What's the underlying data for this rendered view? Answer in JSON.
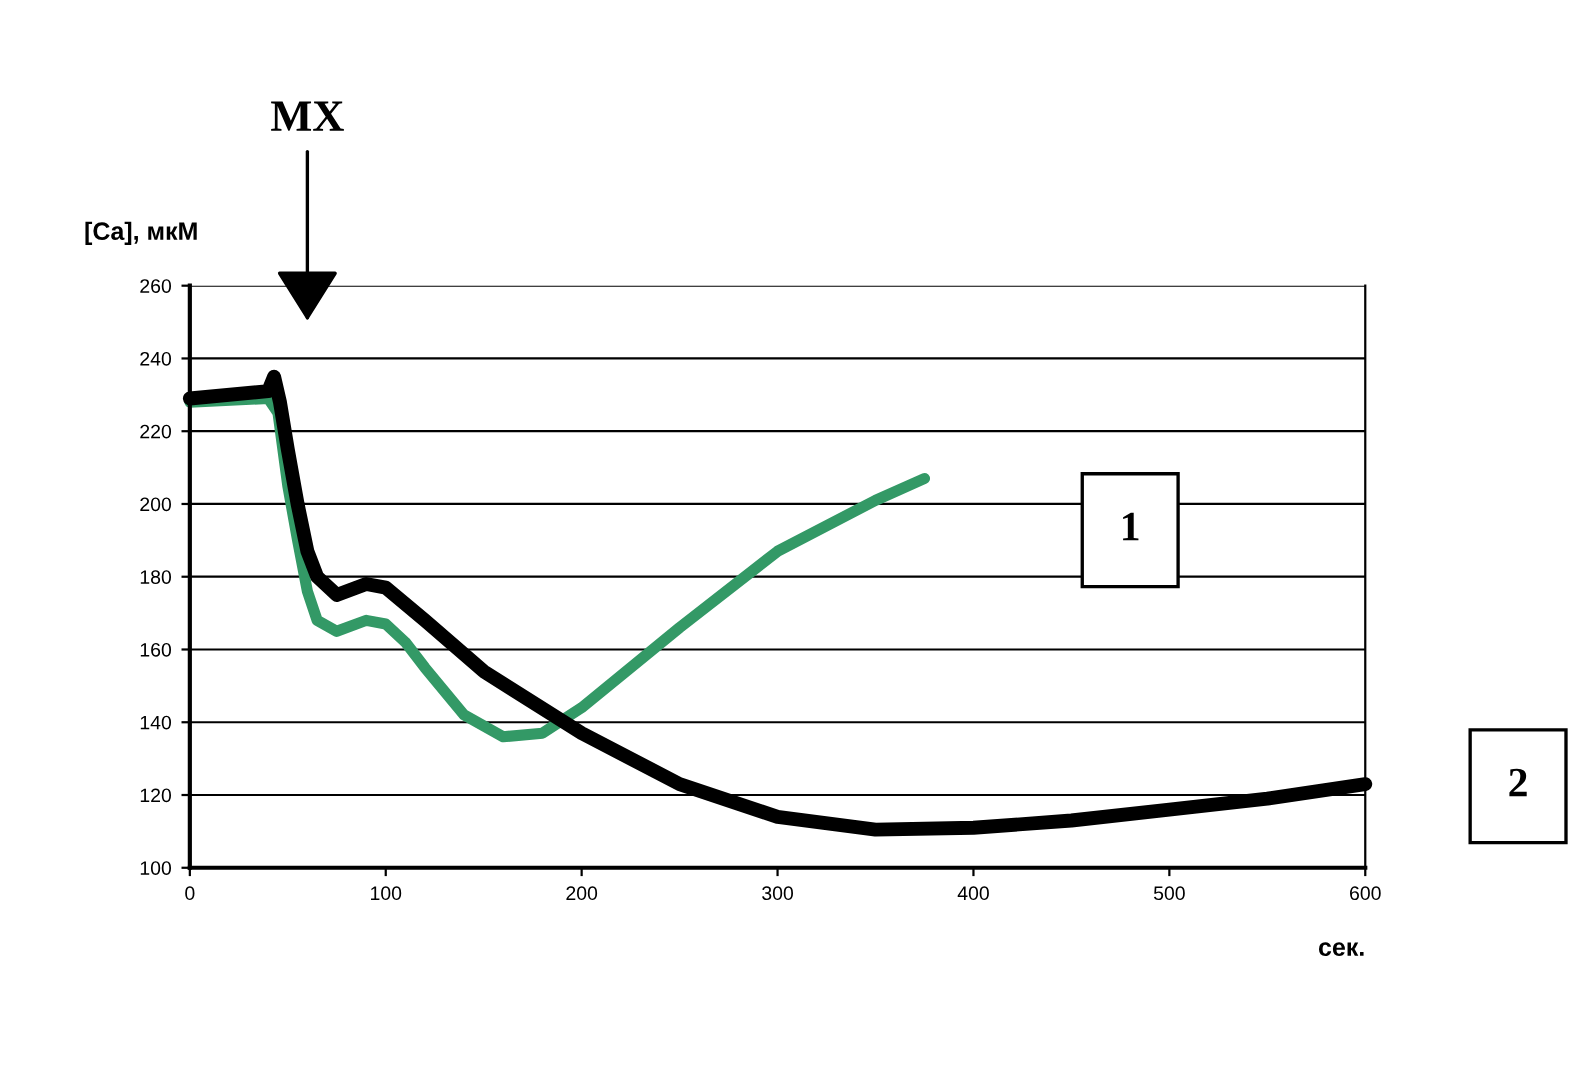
{
  "chart_data": {
    "type": "line",
    "xlabel": "сек.",
    "ylabel": "[Ca], мкМ",
    "xlim": [
      0,
      600
    ],
    "xticks": [
      0,
      100,
      200,
      300,
      400,
      500,
      600
    ],
    "ylim": [
      100,
      260
    ],
    "yticks": [
      100,
      120,
      140,
      160,
      180,
      200,
      220,
      240,
      260
    ],
    "grid": "y",
    "legend": false,
    "marker": "none",
    "line_style": "solid",
    "series": [
      {
        "name": "1",
        "color": "#339966",
        "x": [
          0,
          40,
          45,
          50,
          55,
          60,
          65,
          75,
          90,
          100,
          110,
          120,
          140,
          160,
          180,
          200,
          250,
          300,
          350,
          375
        ],
        "values": [
          228,
          229,
          225,
          205,
          190,
          176,
          168,
          165,
          168,
          167,
          162,
          155,
          142,
          136,
          137,
          144,
          166,
          187,
          201,
          207
        ]
      },
      {
        "name": "2",
        "color": "#000000",
        "x": [
          0,
          40,
          43,
          46,
          50,
          55,
          60,
          65,
          75,
          90,
          100,
          120,
          150,
          200,
          250,
          300,
          350,
          400,
          450,
          500,
          550,
          600
        ],
        "values": [
          229,
          231,
          235,
          228,
          215,
          200,
          187,
          180,
          175,
          178,
          177,
          168,
          154,
          137,
          123,
          114,
          110.5,
          111,
          113,
          116,
          119,
          123
        ]
      }
    ],
    "annotations": [
      "МХ"
    ]
  }
}
